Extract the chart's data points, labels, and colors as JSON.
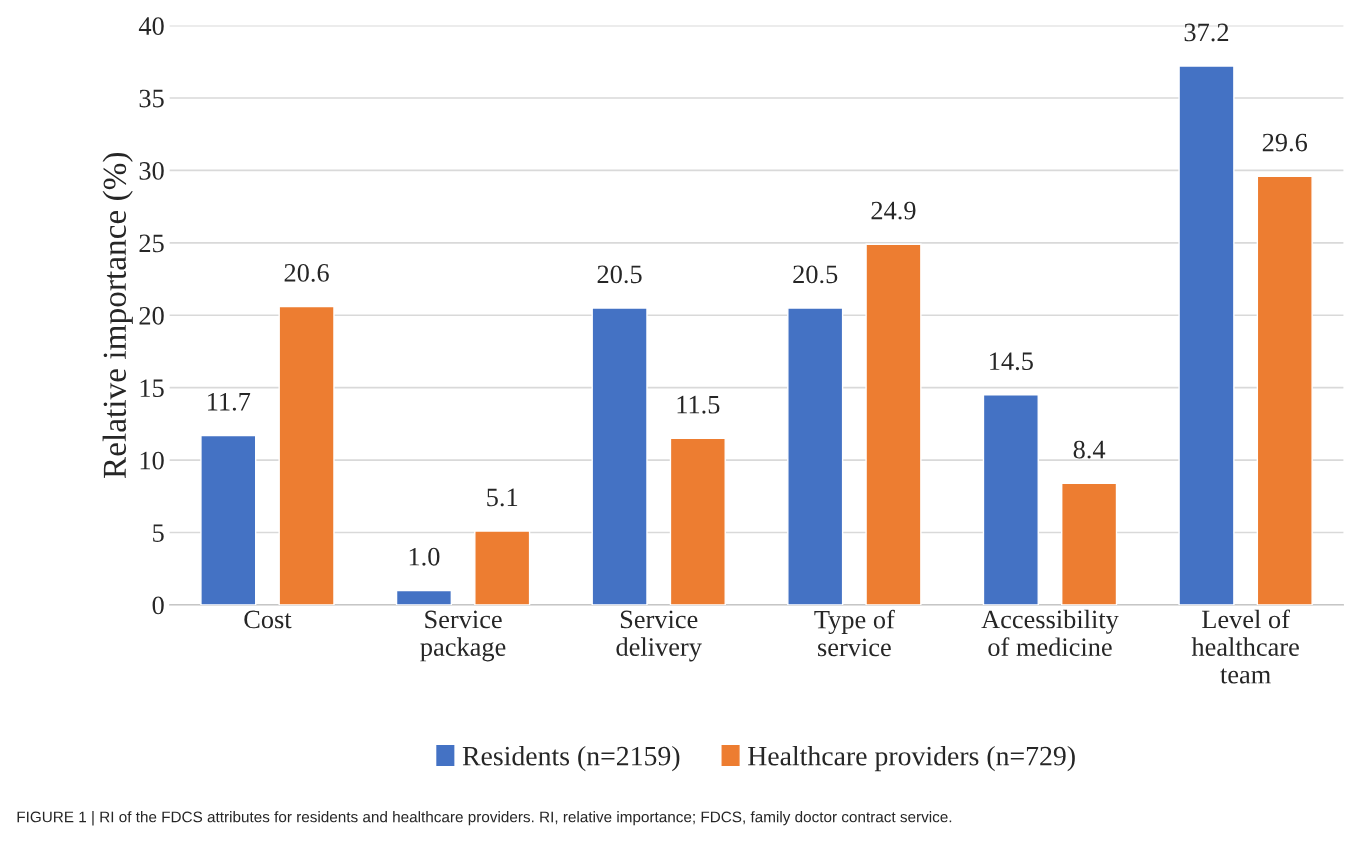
{
  "chart_data": {
    "type": "bar",
    "ylabel": "Relative importance (%)",
    "categories": [
      "Cost",
      "Service\npackage",
      "Service\ndelivery",
      "Type of\nservice",
      "Accessibility\nof medicine",
      "Level of\nhealthcare\nteam"
    ],
    "series": [
      {
        "name": "Residents (n=2159)",
        "color": "#4472c4",
        "values": [
          11.7,
          1.0,
          20.5,
          20.5,
          14.5,
          37.2
        ],
        "value_labels": [
          "11.7",
          "1.0",
          "20.5",
          "20.5",
          "14.5",
          "37.2"
        ]
      },
      {
        "name": "Healthcare providers (n=729)",
        "color": "#ed7d31",
        "values": [
          20.6,
          5.1,
          11.5,
          24.9,
          8.4,
          29.6
        ],
        "value_labels": [
          "20.6",
          "5.1",
          "11.5",
          "24.9",
          "8.4",
          "29.6"
        ]
      }
    ],
    "ylim": [
      0,
      40
    ],
    "yticks": [
      0,
      5,
      10,
      15,
      20,
      25,
      30,
      35,
      40
    ],
    "grid": "y",
    "legend": "bottom",
    "annotations": [
      "FIGURE 1 | RI of the FDCS attributes for residents and healthcare providers. RI, relative importance; FDCS, family doctor contract service."
    ]
  }
}
